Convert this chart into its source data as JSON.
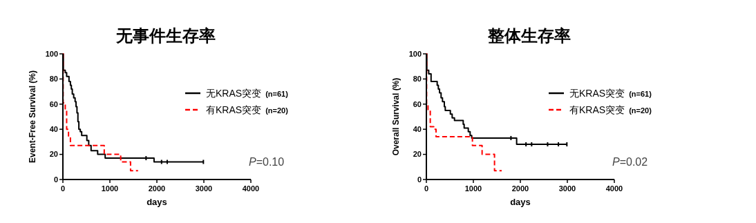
{
  "chart_data": [
    {
      "type": "step",
      "title": "无事件生存率",
      "xlabel": "days",
      "ylabel": "Event-Free Survival (%)",
      "xlim": [
        0,
        4000
      ],
      "xticks": [
        0,
        1000,
        2000,
        3000,
        4000
      ],
      "ylim": [
        0,
        100
      ],
      "yticks": [
        0,
        20,
        40,
        60,
        80,
        100
      ],
      "legend": "right",
      "annotations": [
        "P=0.10"
      ],
      "series": [
        {
          "name": "无KRAS突变 (n=61)",
          "color": "#000000",
          "line_style": "solid",
          "x": [
            0,
            10,
            50,
            80,
            130,
            160,
            180,
            200,
            230,
            260,
            280,
            300,
            320,
            340,
            370,
            400,
            480,
            510,
            550,
            600,
            740,
            900,
            1940,
            2990
          ],
          "values": [
            100,
            87,
            85,
            82,
            78,
            75,
            72,
            68,
            65,
            62,
            58,
            53,
            46,
            40,
            38,
            35,
            35,
            31,
            27,
            23,
            20,
            17,
            14,
            14
          ]
        },
        {
          "name": "有KRAS突变 (n=20)",
          "color": "#ff0000",
          "line_style": "dashed",
          "x": [
            0,
            5,
            50,
            80,
            120,
            160,
            880,
            1230,
            1440,
            1600
          ],
          "values": [
            100,
            61,
            55,
            40,
            34,
            27,
            20,
            14,
            7,
            7
          ]
        },
        {
          "type": "scatter",
          "color": "#000000",
          "x": [
            1770,
            2100,
            2220,
            2990
          ],
          "values": [
            17,
            14,
            14,
            14
          ]
        }
      ]
    },
    {
      "type": "step",
      "title": "整体生存率",
      "xlabel": "days",
      "ylabel": "Overall Survival (%)",
      "xlim": [
        0,
        4000
      ],
      "xticks": [
        0,
        1000,
        2000,
        3000,
        4000
      ],
      "ylim": [
        0,
        100
      ],
      "yticks": [
        0,
        20,
        40,
        60,
        80,
        100
      ],
      "legend": "right",
      "annotations": [
        "P=0.02"
      ],
      "series": [
        {
          "name": "无KRAS突变 (n=61)",
          "color": "#000000",
          "line_style": "solid",
          "x": [
            0,
            10,
            50,
            100,
            230,
            255,
            280,
            313,
            343,
            382,
            402,
            510,
            549,
            598,
            784,
            804,
            892,
            931,
            965,
            1921,
            3000
          ],
          "values": [
            100,
            87,
            84,
            78,
            75,
            72,
            69,
            65,
            62,
            58,
            55,
            52,
            49,
            47,
            44,
            41,
            38,
            35,
            33,
            28,
            28
          ]
        },
        {
          "name": "有KRAS突变 (n=20)",
          "color": "#ff0000",
          "line_style": "dashed",
          "x": [
            0,
            5,
            35,
            83,
            157,
            206,
            980,
            1186,
            1450,
            1603
          ],
          "values": [
            100,
            60,
            55,
            42,
            40,
            34,
            27,
            20,
            7,
            7
          ]
        },
        {
          "type": "scatter",
          "color": "#000000",
          "x": [
            1800,
            2120,
            2240,
            2580,
            2810,
            2990
          ],
          "values": [
            33,
            28,
            28,
            28,
            28,
            28
          ]
        }
      ]
    }
  ]
}
